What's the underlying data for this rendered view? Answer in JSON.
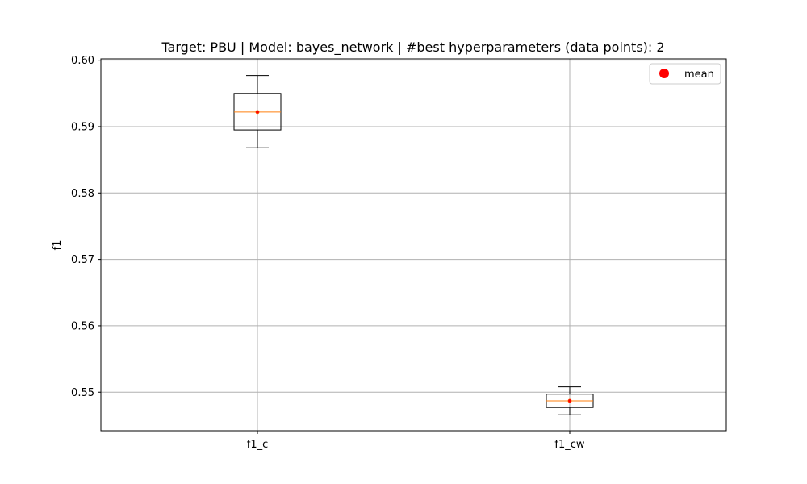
{
  "chart_data": {
    "type": "box",
    "title": "Target: PBU | Model: bayes_network | #best hyperparameters (data points): 2",
    "xlabel": "",
    "ylabel": "f1",
    "ylim": [
      0.5442,
      0.6002
    ],
    "yticks": [
      0.55,
      0.56,
      0.57,
      0.58,
      0.59,
      0.6
    ],
    "ytick_labels": [
      "0.55",
      "0.56",
      "0.57",
      "0.58",
      "0.59",
      "0.60"
    ],
    "categories": [
      "f1_c",
      "f1_cw"
    ],
    "boxes": [
      {
        "category": "f1_c",
        "whisker_low": 0.5868,
        "q1": 0.5895,
        "median": 0.5922,
        "q3": 0.595,
        "whisker_high": 0.5977,
        "mean": 0.5922
      },
      {
        "category": "f1_cw",
        "whisker_low": 0.5466,
        "q1": 0.5477,
        "median": 0.5487,
        "q3": 0.5497,
        "whisker_high": 0.5508,
        "mean": 0.5487
      }
    ],
    "grid": true,
    "legend": {
      "position": "top-right",
      "entries": [
        {
          "label": "mean",
          "marker": "circle"
        }
      ]
    },
    "colors": {
      "box": "#000000",
      "median": "#ff7f0e",
      "mean": "#ff0000",
      "grid": "#b0b0b0"
    }
  }
}
